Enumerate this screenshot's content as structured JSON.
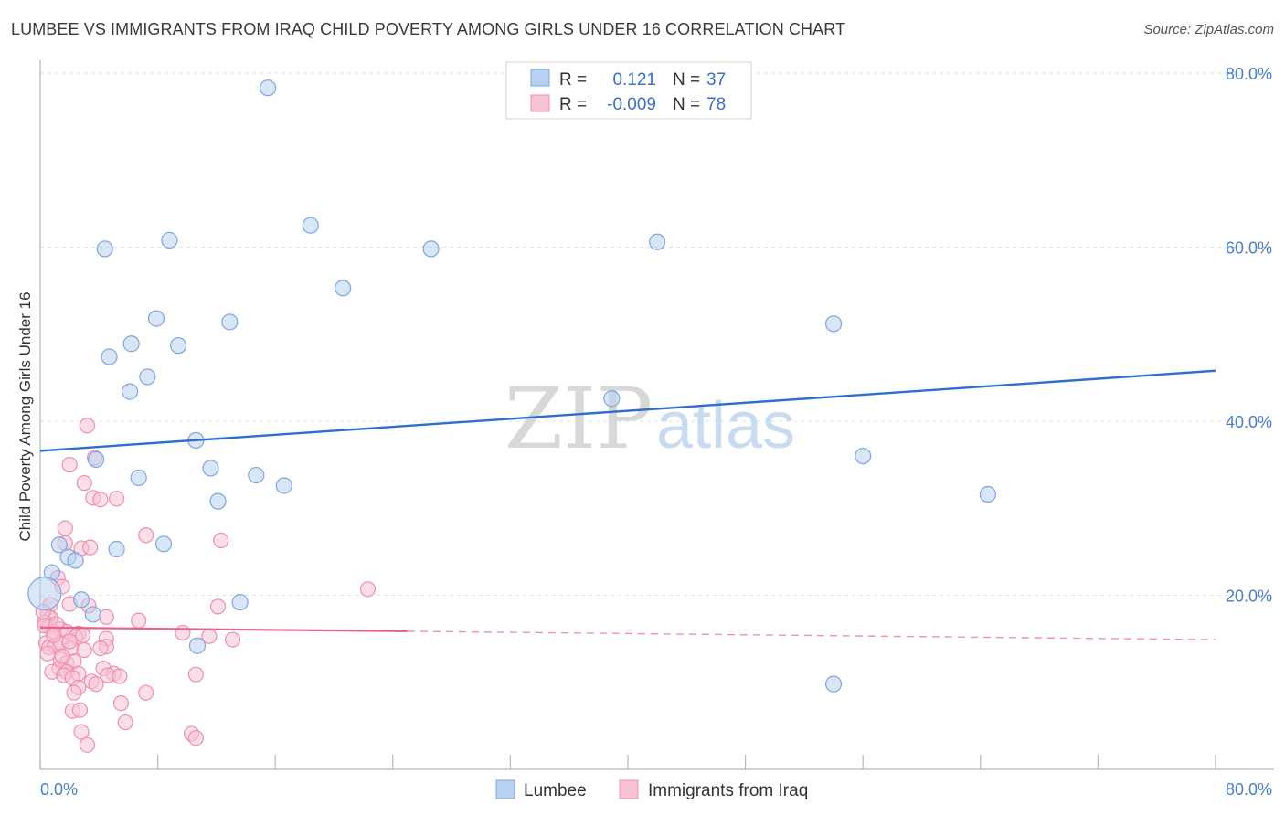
{
  "title": "LUMBEE VS IMMIGRANTS FROM IRAQ CHILD POVERTY AMONG GIRLS UNDER 16 CORRELATION CHART",
  "source": "Source: ZipAtlas.com",
  "watermark": {
    "zip": "ZIP",
    "atlas": "atlas"
  },
  "colors": {
    "lumbee_fill": "#b9d1f0",
    "lumbee_stroke": "#7ea6dd",
    "lumbee_line": "#2d6fcc",
    "iraq_fill": "#f7c3d4",
    "iraq_stroke": "#ee8fb0",
    "iraq_line": "#e8628e",
    "grid": "#dde3ea"
  },
  "legend": {
    "rows": [
      {
        "r_label": "R =",
        "r_value": "0.121",
        "n_label": "N =",
        "n_value": "37"
      },
      {
        "r_label": "R =",
        "r_value": "-0.009",
        "n_label": "N =",
        "n_value": "78"
      }
    ]
  },
  "chart_data": {
    "type": "scatter",
    "title": "LUMBEE VS IMMIGRANTS FROM IRAQ CHILD POVERTY AMONG GIRLS UNDER 16 CORRELATION CHART",
    "xlabel": "",
    "ylabel": "Child Poverty Among Girls Under 16",
    "xlim": [
      0,
      80
    ],
    "ylim": [
      0,
      80
    ],
    "x_tick_labels": [
      "0.0%",
      "80.0%"
    ],
    "y_ticks": [
      {
        "value": 20,
        "label": "20.0%"
      },
      {
        "value": 40,
        "label": "40.0%"
      },
      {
        "value": 60,
        "label": "60.0%"
      },
      {
        "value": 80,
        "label": "80.0%"
      }
    ],
    "series": [
      {
        "name": "Lumbee",
        "color": "#7ea6dd",
        "trend": {
          "x": [
            0,
            80
          ],
          "y": [
            36.6,
            45.8
          ],
          "dashed_from": null
        },
        "points": [
          [
            15.5,
            78.3
          ],
          [
            18.4,
            62.5
          ],
          [
            4.4,
            59.8
          ],
          [
            8.8,
            60.8
          ],
          [
            26.6,
            59.8
          ],
          [
            42.0,
            60.6
          ],
          [
            20.6,
            55.3
          ],
          [
            7.9,
            51.8
          ],
          [
            12.9,
            51.4
          ],
          [
            54.0,
            51.2
          ],
          [
            6.2,
            48.9
          ],
          [
            9.4,
            48.7
          ],
          [
            4.7,
            47.4
          ],
          [
            7.3,
            45.1
          ],
          [
            6.1,
            43.4
          ],
          [
            38.9,
            42.6
          ],
          [
            10.6,
            37.8
          ],
          [
            3.8,
            35.6
          ],
          [
            56.0,
            36.0
          ],
          [
            11.6,
            34.6
          ],
          [
            6.7,
            33.5
          ],
          [
            14.7,
            33.8
          ],
          [
            16.6,
            32.6
          ],
          [
            12.1,
            30.8
          ],
          [
            64.5,
            31.6
          ],
          [
            1.3,
            25.8
          ],
          [
            5.2,
            25.3
          ],
          [
            8.4,
            25.9
          ],
          [
            1.9,
            24.4
          ],
          [
            2.4,
            24.0
          ],
          [
            0.8,
            22.6
          ],
          [
            0.3,
            20.2
          ],
          [
            2.8,
            19.5
          ],
          [
            13.6,
            19.2
          ],
          [
            3.6,
            17.8
          ],
          [
            10.7,
            14.2
          ],
          [
            54.0,
            9.8
          ]
        ]
      },
      {
        "name": "Immigrants from Iraq",
        "color": "#ee8fb0",
        "trend": {
          "x": [
            0,
            80
          ],
          "y": [
            16.3,
            14.9
          ],
          "dashed_from": 25
        },
        "points": [
          [
            3.2,
            39.5
          ],
          [
            2.0,
            35.0
          ],
          [
            3.7,
            35.8
          ],
          [
            3.0,
            32.9
          ],
          [
            3.6,
            31.2
          ],
          [
            4.1,
            31.0
          ],
          [
            5.2,
            31.1
          ],
          [
            1.7,
            27.7
          ],
          [
            7.2,
            26.9
          ],
          [
            12.3,
            26.3
          ],
          [
            1.7,
            26.0
          ],
          [
            2.8,
            25.4
          ],
          [
            3.4,
            25.5
          ],
          [
            1.2,
            22.0
          ],
          [
            1.5,
            21.0
          ],
          [
            22.3,
            20.7
          ],
          [
            0.7,
            18.9
          ],
          [
            2.0,
            19.0
          ],
          [
            3.3,
            18.8
          ],
          [
            12.1,
            18.7
          ],
          [
            0.5,
            17.6
          ],
          [
            0.7,
            17.4
          ],
          [
            4.5,
            17.5
          ],
          [
            6.7,
            17.1
          ],
          [
            0.3,
            16.9
          ],
          [
            0.6,
            16.4
          ],
          [
            1.4,
            16.1
          ],
          [
            0.9,
            15.8
          ],
          [
            1.8,
            15.8
          ],
          [
            2.6,
            15.6
          ],
          [
            2.4,
            15.2
          ],
          [
            2.9,
            15.4
          ],
          [
            4.5,
            15.0
          ],
          [
            9.7,
            15.7
          ],
          [
            11.5,
            15.3
          ],
          [
            13.1,
            14.9
          ],
          [
            0.4,
            14.5
          ],
          [
            0.6,
            14.0
          ],
          [
            1.0,
            14.2
          ],
          [
            1.4,
            14.5
          ],
          [
            2.1,
            13.9
          ],
          [
            3.0,
            13.7
          ],
          [
            4.5,
            14.1
          ],
          [
            0.5,
            13.3
          ],
          [
            1.4,
            12.6
          ],
          [
            1.8,
            12.2
          ],
          [
            2.3,
            12.4
          ],
          [
            1.3,
            11.6
          ],
          [
            1.8,
            11.2
          ],
          [
            2.6,
            11.0
          ],
          [
            4.3,
            11.6
          ],
          [
            5.0,
            11.0
          ],
          [
            0.8,
            11.2
          ],
          [
            1.6,
            10.8
          ],
          [
            2.2,
            10.5
          ],
          [
            4.6,
            10.8
          ],
          [
            10.6,
            10.9
          ],
          [
            2.6,
            9.4
          ],
          [
            3.5,
            10.1
          ],
          [
            2.3,
            8.8
          ],
          [
            7.2,
            8.8
          ],
          [
            5.5,
            7.6
          ],
          [
            2.2,
            6.7
          ],
          [
            2.7,
            6.8
          ],
          [
            5.8,
            5.4
          ],
          [
            2.8,
            4.3
          ],
          [
            10.3,
            4.1
          ],
          [
            10.6,
            3.6
          ],
          [
            3.2,
            2.8
          ],
          [
            0.3,
            16.5
          ],
          [
            1.1,
            16.7
          ],
          [
            0.9,
            15.4
          ],
          [
            2.0,
            14.7
          ],
          [
            4.1,
            13.9
          ],
          [
            5.4,
            10.7
          ],
          [
            0.2,
            18.1
          ],
          [
            3.8,
            9.8
          ],
          [
            1.5,
            13.0
          ]
        ]
      }
    ]
  }
}
